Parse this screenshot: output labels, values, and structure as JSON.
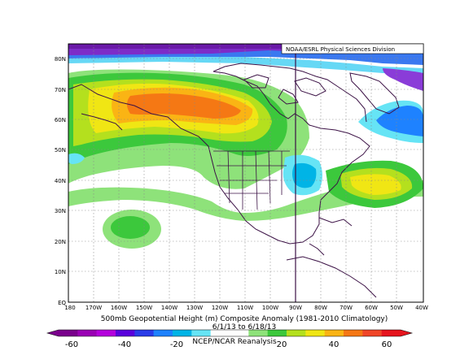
{
  "credit": "NOAA/ESRL Physical Sciences Division",
  "caption": {
    "line1": "500mb Geopotential Height (m) Composite Anomaly (1981-2010 Climatology)",
    "line2": "6/1/13 to 6/18/13",
    "line3": "NCEP/NCAR Reanalysis"
  },
  "lat_labels": [
    "80N",
    "70N",
    "60N",
    "50N",
    "40N",
    "30N",
    "20N",
    "10N",
    "EQ"
  ],
  "lon_labels": [
    "180",
    "170W",
    "160W",
    "150W",
    "140W",
    "130W",
    "120W",
    "110W",
    "100W",
    "90W",
    "80W",
    "70W",
    "60W",
    "50W",
    "40W"
  ],
  "colorbar": {
    "tick_labels": [
      "-60",
      "-40",
      "-20",
      "20",
      "40",
      "60"
    ],
    "colors": [
      "#7a008c",
      "#9a00b4",
      "#b400dc",
      "#5a00dc",
      "#2a3ce8",
      "#1e82ff",
      "#00b4e6",
      "#66e4f5",
      "#ffffff",
      "#ffffff",
      "#8ee27a",
      "#3cc83c",
      "#b4e01e",
      "#f0e614",
      "#fab414",
      "#f57814",
      "#f04628",
      "#e6141e"
    ]
  }
}
